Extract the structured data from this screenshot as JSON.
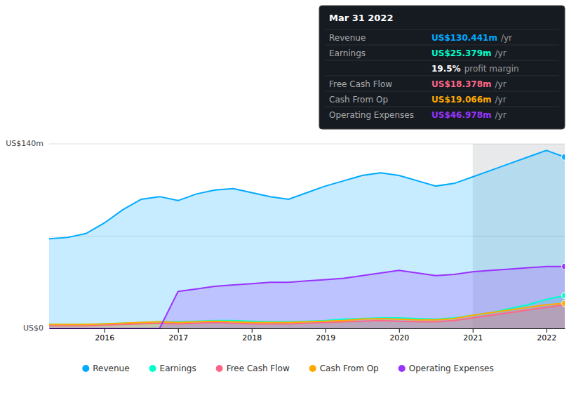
{
  "chart_data": {
    "type": "area",
    "x": [
      2015.25,
      2015.5,
      2015.75,
      2016,
      2016.25,
      2016.5,
      2016.75,
      2017,
      2017.25,
      2017.5,
      2017.75,
      2018,
      2018.25,
      2018.5,
      2018.75,
      2019,
      2019.25,
      2019.5,
      2019.75,
      2020,
      2020.25,
      2020.5,
      2020.75,
      2021,
      2021.25,
      2021.5,
      2021.75,
      2022,
      2022.25
    ],
    "series": [
      {
        "name": "Revenue",
        "color": "#00aaff",
        "marker": "end",
        "values": [
          68,
          69,
          72,
          80,
          90,
          98,
          100,
          97,
          102,
          105,
          106,
          103,
          100,
          98,
          103,
          108,
          112,
          116,
          118,
          116,
          112,
          108,
          110,
          115,
          120,
          125,
          130,
          135,
          130
        ]
      },
      {
        "name": "Earnings",
        "color": "#00ffcc",
        "marker": "end",
        "values": [
          3,
          3,
          3,
          3.5,
          4,
          4.5,
          5,
          5,
          5.5,
          6,
          6,
          5.5,
          5,
          5,
          5.5,
          6,
          7,
          7.5,
          8,
          8,
          7.5,
          7,
          8,
          10,
          12,
          15,
          18,
          22,
          25
        ]
      },
      {
        "name": "Free Cash Flow",
        "color": "#ff6688",
        "values": [
          2,
          2,
          2,
          2.5,
          3,
          3.5,
          4,
          3.5,
          4,
          4.5,
          4,
          3.5,
          3.5,
          3.5,
          4,
          4.5,
          5,
          5.5,
          6,
          5.5,
          5,
          5,
          6,
          8,
          10,
          12,
          14,
          16,
          18
        ]
      },
      {
        "name": "Cash From Op",
        "color": "#ffaa00",
        "marker": "end",
        "values": [
          3,
          3,
          3,
          3.5,
          4,
          4.5,
          5,
          4.5,
          5,
          5.5,
          5,
          4.5,
          4.5,
          4.5,
          5,
          5.5,
          6,
          7,
          7.5,
          7,
          6.5,
          6.5,
          7.5,
          10,
          12,
          14,
          16,
          18,
          19
        ]
      },
      {
        "name": "Operating Expenses",
        "color": "#9933ff",
        "marker": "end",
        "values": [
          0,
          0,
          0,
          0,
          0,
          0,
          0,
          28,
          30,
          32,
          33,
          34,
          35,
          35,
          36,
          37,
          38,
          40,
          42,
          44,
          42,
          40,
          41,
          43,
          44,
          45,
          46,
          47,
          47
        ]
      }
    ],
    "xlim": [
      2015.25,
      2022.25
    ],
    "xticks": [
      2016,
      2017,
      2018,
      2019,
      2020,
      2021,
      2022
    ],
    "ylim": [
      0,
      140
    ],
    "yticks": [
      0,
      70,
      140
    ],
    "grid": true,
    "tick_labels": "x",
    "legend": "bottom",
    "highlight_x": [
      2021.0,
      2022.25
    ],
    "annotations": [
      {
        "text": "US$140m",
        "y": 140
      },
      {
        "text": "US$0",
        "y": 0
      },
      {
        "title": "Mar 31 2022",
        "rows": [
          {
            "label": "Revenue",
            "value": "US$130.441m",
            "suffix": "/yr",
            "color": "#00aaff"
          },
          {
            "label": "Earnings",
            "value": "US$25.379m",
            "suffix": "/yr",
            "color": "#00ffcc"
          },
          {
            "value": "19.5%",
            "suffix": "profit margin"
          },
          {
            "label": "Free Cash Flow",
            "value": "US$18.378m",
            "suffix": "/yr",
            "color": "#ff6688"
          },
          {
            "label": "Cash From Op",
            "value": "US$19.066m",
            "suffix": "/yr",
            "color": "#ffaa00"
          },
          {
            "label": "Operating Expenses",
            "value": "US$46.978m",
            "suffix": "/yr",
            "color": "#9933ff"
          }
        ]
      }
    ]
  }
}
